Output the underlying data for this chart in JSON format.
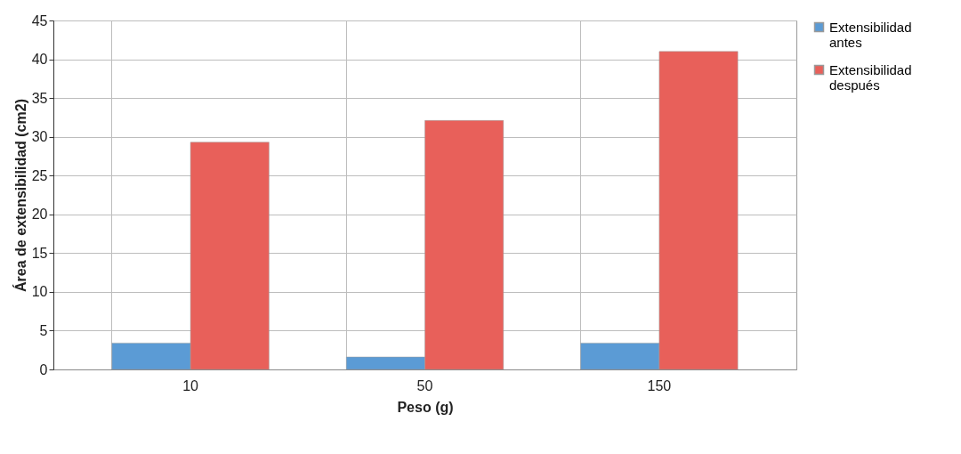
{
  "chart_data": {
    "type": "bar",
    "xlabel": "Peso (g)",
    "ylabel": "Área de extensibilidad (cm2)",
    "categories": [
      "10",
      "50",
      "150"
    ],
    "series": [
      {
        "name": "Extensibilidad antes",
        "color": "#5b9bd5",
        "values": [
          3.4,
          1.6,
          3.4
        ]
      },
      {
        "name": "Extensibilidad después",
        "color": "#e8605a",
        "values": [
          29.3,
          32.1,
          41.0
        ]
      }
    ],
    "ylim": [
      0,
      45
    ],
    "yticks": [
      0,
      5,
      10,
      15,
      20,
      25,
      30,
      35,
      40,
      45
    ],
    "grid": true,
    "legend": "right"
  }
}
